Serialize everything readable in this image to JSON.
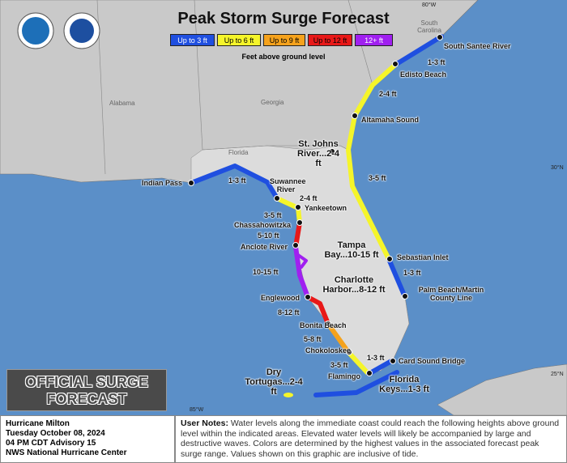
{
  "header": {
    "title": "Peak Storm Surge Forecast"
  },
  "legend": {
    "items": [
      {
        "label": "Up to 3 ft",
        "color": "#1f4fe0"
      },
      {
        "label": "Up to 6 ft",
        "color": "#f5f52a"
      },
      {
        "label": "Up to 9 ft",
        "color": "#f5a21c"
      },
      {
        "label": "Up to 12 ft",
        "color": "#e81818"
      },
      {
        "label": "12+ ft",
        "color": "#a020f0"
      }
    ],
    "caption": "Feet above ground level"
  },
  "map": {
    "region_labels": [
      "Alabama",
      "Georgia",
      "Florida",
      "South Carolina"
    ],
    "grid_labels": [
      "80°W",
      "85°W",
      "30°N",
      "25°N"
    ],
    "points": [
      "South Santee River",
      "Edisto Beach",
      "Altamaha Sound",
      "St. Johns River...2-4 ft",
      "Sebastian Inlet",
      "Palm Beach/Martin County Line",
      "Card Sound Bridge",
      "Florida Keys...1-3 ft",
      "Flamingo",
      "Chokoloskee",
      "Bonita Beach",
      "Englewood",
      "Anclote River",
      "Chassahowitzka",
      "Yankeetown",
      "Suwannee River",
      "Indian Pass",
      "Tampa Bay...10-15 ft",
      "Charlotte Harbor...8-12 ft",
      "Dry Tortugas...2-4 ft"
    ],
    "segment_labels": [
      "1-3 ft",
      "2-4 ft",
      "3-5 ft",
      "1-3 ft",
      "1-3 ft",
      "2-4 ft",
      "3-5 ft",
      "5-10 ft",
      "10-15 ft",
      "8-12 ft",
      "5-8 ft",
      "3-5 ft",
      "1-3 ft"
    ]
  },
  "banner": "OFFICIAL SURGE FORECAST",
  "info": [
    "Hurricane Milton",
    "Tuesday October 08, 2024",
    "04 PM CDT Advisory 15",
    "NWS National Hurricane Center"
  ],
  "notes": {
    "label": "User Notes:",
    "text": "Water levels along the immediate coast could reach the following heights above ground level within the indicated areas. Elevated water levels will likely be accompanied by large and destructive waves. Colors are determined by the highest values in the associated forecast peak surge range. Values shown on this graphic are inclusive of tide."
  }
}
